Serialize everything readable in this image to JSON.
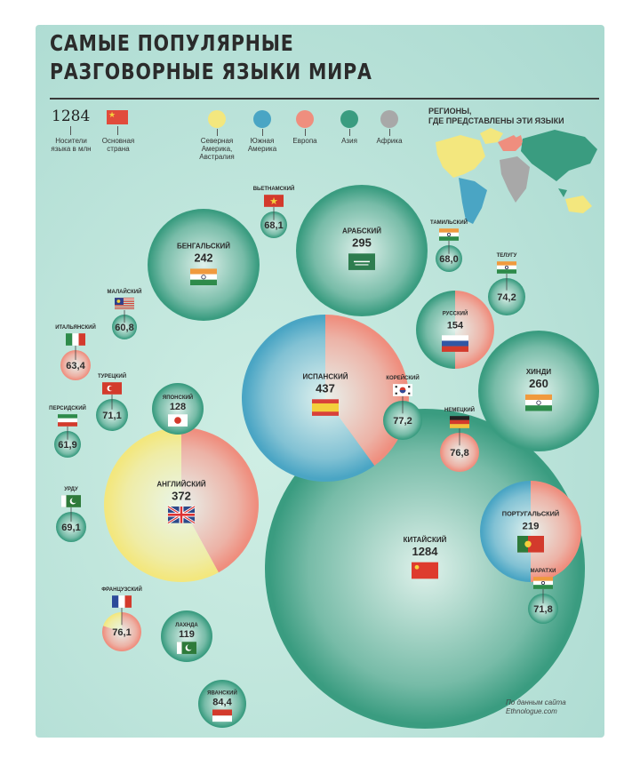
{
  "header": {
    "title_line1": "САМЫЕ ПОПУЛЯРНЫЕ",
    "title_line2": "РАЗГОВОРНЫЕ ЯЗЫКИ МИРА"
  },
  "legend": {
    "example_value": "1284",
    "speakers_label": "Носители\nязыка в млн",
    "country_label": "Основная\nстрана",
    "regions": [
      {
        "name": "Северная\nАмерика,\nАвстралия",
        "color": "#f3e77e"
      },
      {
        "name": "Южная\nАмерика",
        "color": "#4aa5c4"
      },
      {
        "name": "Европа",
        "color": "#ef8e7e"
      },
      {
        "name": "Азия",
        "color": "#3a9c80"
      },
      {
        "name": "Африка",
        "color": "#a8a8a8"
      }
    ],
    "regions_title": "РЕГИОНЫ,\nГДЕ ПРЕДСТАВЛЕНЫ ЭТИ ЯЗЫКИ"
  },
  "source": "По данным сайта\nEthnologue.com",
  "chart_data": {
    "type": "bubble",
    "value_unit": "млн носителей",
    "region_colors": {
      "na": "#f3e77e",
      "sa": "#4aa5c4",
      "eu": "#ef8e7e",
      "as": "#3a9c80",
      "af": "#a8a8a8"
    },
    "languages": [
      {
        "name": "КИТАЙСКИЙ",
        "value": "1284",
        "flag": "cn",
        "regions": {
          "as": 1
        }
      },
      {
        "name": "ИСПАНСКИЙ",
        "value": "437",
        "flag": "es",
        "regions": {
          "eu": 0.4,
          "sa": 0.6
        }
      },
      {
        "name": "АНГЛИЙСКИЙ",
        "value": "372",
        "flag": "gb",
        "regions": {
          "eu": 0.42,
          "na": 0.58
        }
      },
      {
        "name": "АРАБСКИЙ",
        "value": "295",
        "flag": "sa",
        "regions": {
          "as": 1
        }
      },
      {
        "name": "ХИНДИ",
        "value": "260",
        "flag": "in",
        "regions": {
          "as": 1
        }
      },
      {
        "name": "БЕНГАЛЬСКИЙ",
        "value": "242",
        "flag": "in",
        "regions": {
          "as": 1
        }
      },
      {
        "name": "ПОРТУГАЛЬСКИЙ",
        "value": "219",
        "flag": "pt",
        "regions": {
          "eu": 0.5,
          "sa": 0.5
        }
      },
      {
        "name": "РУССКИЙ",
        "value": "154",
        "flag": "ru",
        "regions": {
          "eu": 0.5,
          "as": 0.5
        }
      },
      {
        "name": "ЯПОНСКИЙ",
        "value": "128",
        "flag": "jp",
        "regions": {
          "as": 1
        }
      },
      {
        "name": "ЛАХНДА",
        "value": "119",
        "flag": "pk",
        "regions": {
          "as": 1
        }
      },
      {
        "name": "ЯВАНСКИЙ",
        "value": "84,4",
        "flag": "id",
        "regions": {
          "as": 1
        }
      },
      {
        "name": "КОРЕЙСКИЙ",
        "value": "77,2",
        "flag": "kr",
        "regions": {
          "as": 1
        }
      },
      {
        "name": "НЕМЕЦКИЙ",
        "value": "76,8",
        "flag": "de",
        "regions": {
          "eu": 1
        }
      },
      {
        "name": "ФРАНЦУЗСКИЙ",
        "value": "76,1",
        "flag": "fr",
        "regions": {
          "eu": 0.8,
          "na": 0.2
        }
      },
      {
        "name": "ТЕЛУГУ",
        "value": "74,2",
        "flag": "in",
        "regions": {
          "as": 1
        }
      },
      {
        "name": "МАРАТХИ",
        "value": "71,8",
        "flag": "in",
        "regions": {
          "as": 1
        }
      },
      {
        "name": "ТУРЕЦКИЙ",
        "value": "71,1",
        "flag": "tr",
        "regions": {
          "as": 1
        }
      },
      {
        "name": "УРДУ",
        "value": "69,1",
        "flag": "pk",
        "regions": {
          "as": 1
        }
      },
      {
        "name": "ВЬЕТНАМСКИЙ",
        "value": "68,1",
        "flag": "vn",
        "regions": {
          "as": 1
        }
      },
      {
        "name": "ТАМИЛЬСКИЙ",
        "value": "68,0",
        "flag": "in",
        "regions": {
          "as": 1
        }
      },
      {
        "name": "ИТАЛЬЯНСКИЙ",
        "value": "63,4",
        "flag": "it",
        "regions": {
          "eu": 1
        }
      },
      {
        "name": "ПЕРСИДСКИЙ",
        "value": "61,9",
        "flag": "ir",
        "regions": {
          "as": 1
        }
      },
      {
        "name": "МАЛАЙСКИЙ",
        "value": "60,8",
        "flag": "my",
        "regions": {
          "as": 1
        }
      }
    ]
  }
}
